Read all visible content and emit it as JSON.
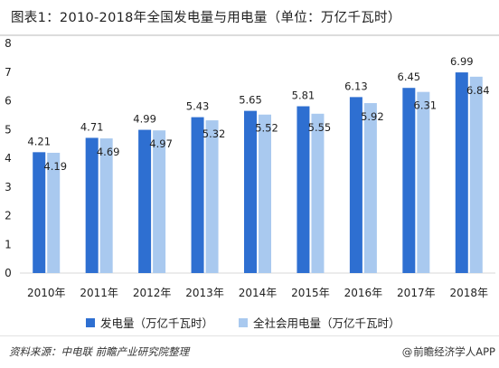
{
  "header": {
    "title": "图表1：2010-2018年全国发电量与用电量（单位：万亿千瓦时）"
  },
  "footer": {
    "source": "资料来源：中电联 前瞻产业研究院整理",
    "brand": "前瞻经济学人APP",
    "brand_icon": "@"
  },
  "colors": {
    "series1": "#2e6fd1",
    "series2": "#a9c9ef",
    "axis": "#d9d9d9",
    "text": "#1f1f1f"
  },
  "chart_data": {
    "type": "bar",
    "title": "",
    "xlabel": "",
    "ylabel": "",
    "categories": [
      "2010年",
      "2011年",
      "2012年",
      "2013年",
      "2014年",
      "2015年",
      "2016年",
      "2017年",
      "2018年"
    ],
    "series": [
      {
        "name": "发电量（万亿千瓦时）",
        "values": [
          4.21,
          4.71,
          4.99,
          5.43,
          5.65,
          5.81,
          6.13,
          6.45,
          6.99
        ]
      },
      {
        "name": "全社会用电量（万亿千瓦时）",
        "values": [
          4.19,
          4.69,
          4.97,
          5.32,
          5.52,
          5.55,
          5.92,
          6.31,
          6.84
        ]
      }
    ],
    "ylim": [
      0,
      8
    ],
    "yticks": [
      0,
      1,
      2,
      3,
      4,
      5,
      6,
      7,
      8
    ],
    "grid": false,
    "legend_position": "bottom"
  }
}
